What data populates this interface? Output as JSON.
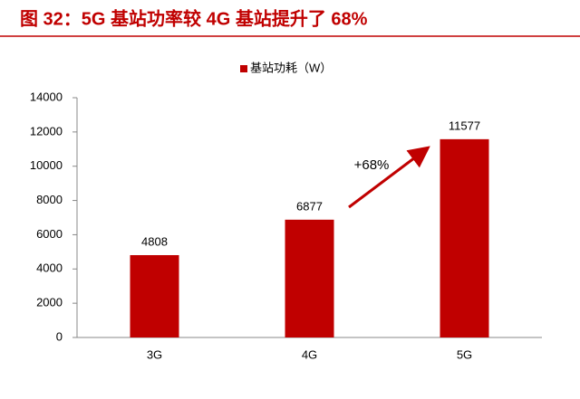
{
  "chart_data": {
    "type": "bar",
    "title": "图 32：5G 基站功率较 4G 基站提升了 68%",
    "categories": [
      "3G",
      "4G",
      "5G"
    ],
    "series": [
      {
        "name": "基站功耗（W）",
        "color": "#c00000",
        "values": [
          4808,
          6877,
          11577
        ]
      }
    ],
    "ylim": [
      0,
      14000
    ],
    "yticks": [
      0,
      2000,
      4000,
      6000,
      8000,
      10000,
      12000,
      14000
    ],
    "annotation": "+68%"
  }
}
